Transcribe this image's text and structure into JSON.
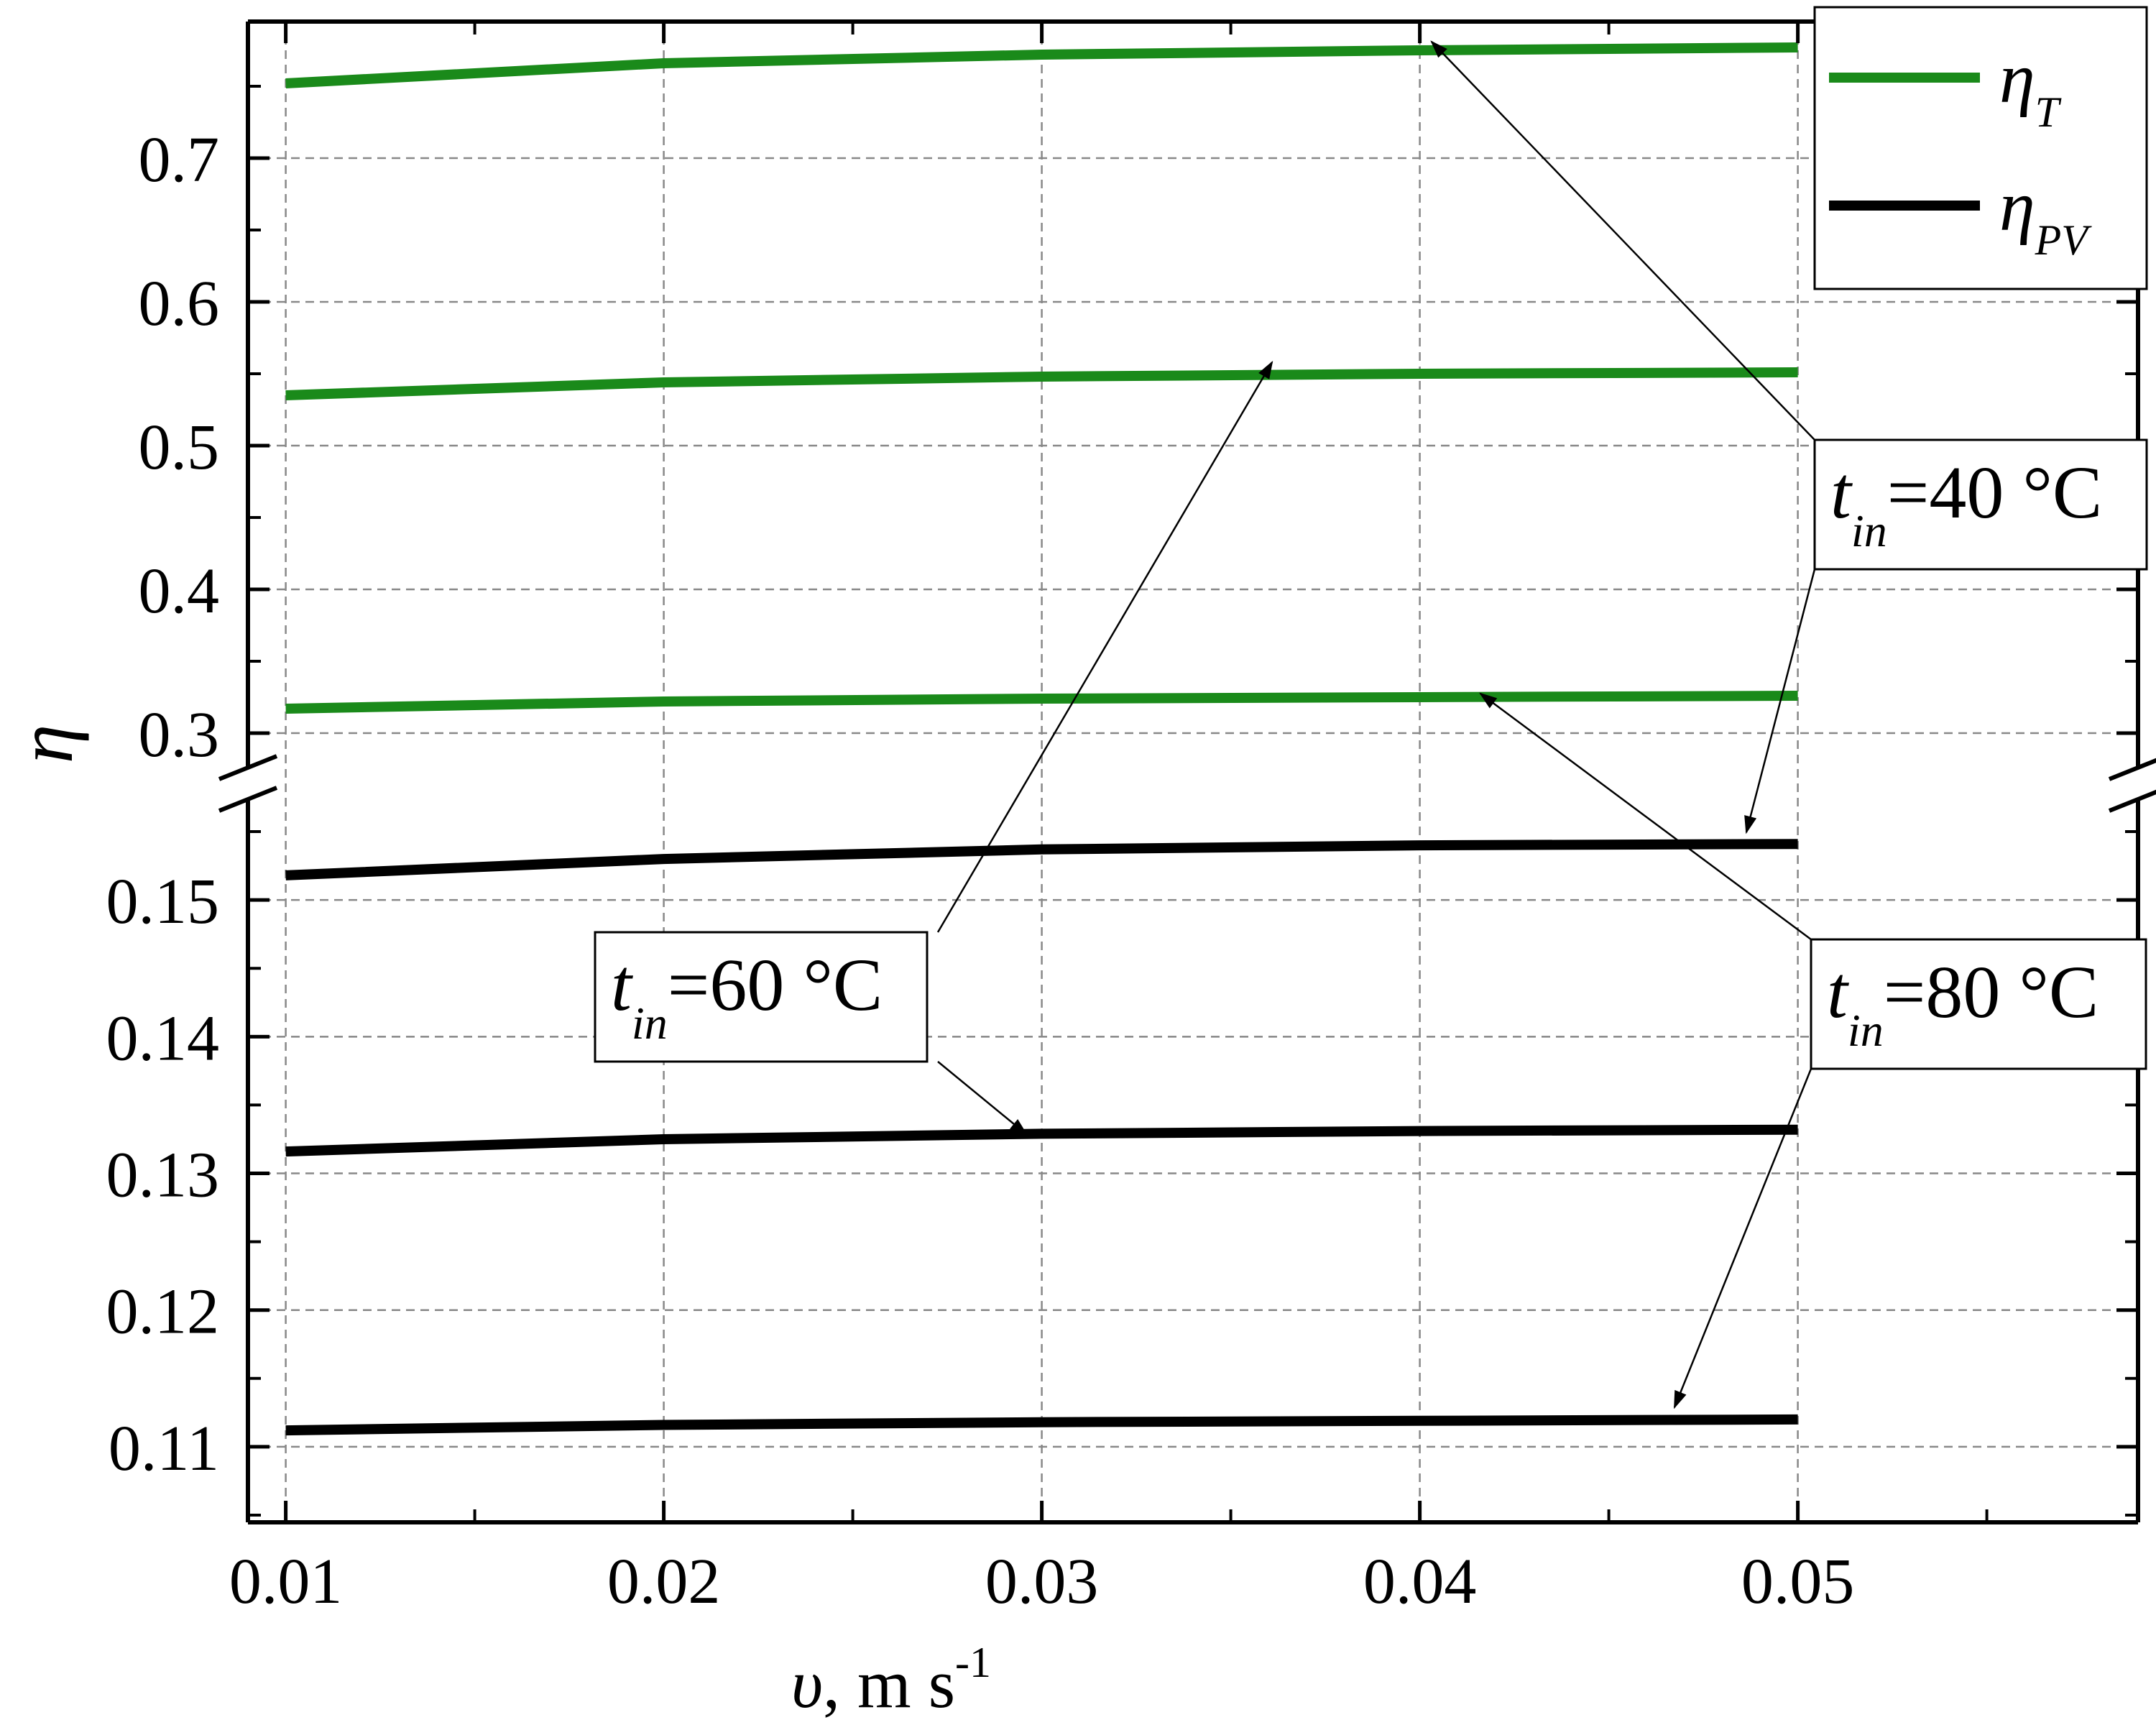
{
  "chart_data": {
    "type": "line",
    "xlabel": {
      "symbol": "υ",
      "unit": ", m s",
      "sup": "-1"
    },
    "ylabel": "η",
    "xlim": [
      0.009,
      0.059
    ],
    "x_ticks": [
      "0.01",
      "0.02",
      "0.03",
      "0.04",
      "0.05"
    ],
    "y_axis_broken": true,
    "y_upper": {
      "range": [
        0.27,
        0.79
      ],
      "ticks": [
        "0.3",
        "0.4",
        "0.5",
        "0.6",
        "0.7"
      ]
    },
    "y_lower": {
      "range": [
        0.105,
        0.158
      ],
      "ticks": [
        "0.11",
        "0.12",
        "0.13",
        "0.14",
        "0.15"
      ]
    },
    "grid": true,
    "legend_position": "top-right",
    "legend": [
      {
        "key": "eta_T",
        "base": "η",
        "sub": "T",
        "color": "#1a8a1a"
      },
      {
        "key": "eta_PV",
        "base": "η",
        "sub": "PV",
        "color": "#000000"
      }
    ],
    "series": [
      {
        "group": "eta_T",
        "panel": "upper",
        "color": "#1a8a1a",
        "x": [
          0.01,
          0.02,
          0.03,
          0.04,
          0.05
        ],
        "y": [
          0.752,
          0.766,
          0.772,
          0.775,
          0.777
        ]
      },
      {
        "group": "eta_T",
        "panel": "upper",
        "color": "#1a8a1a",
        "x": [
          0.01,
          0.02,
          0.03,
          0.04,
          0.05
        ],
        "y": [
          0.535,
          0.544,
          0.548,
          0.55,
          0.551
        ]
      },
      {
        "group": "eta_T",
        "panel": "upper",
        "color": "#1a8a1a",
        "x": [
          0.01,
          0.02,
          0.03,
          0.04,
          0.05
        ],
        "y": [
          0.317,
          0.322,
          0.324,
          0.325,
          0.326
        ]
      },
      {
        "group": "eta_PV",
        "panel": "lower",
        "color": "#000000",
        "x": [
          0.01,
          0.02,
          0.03,
          0.04,
          0.05
        ],
        "y": [
          0.1518,
          0.153,
          0.1537,
          0.154,
          0.1541
        ]
      },
      {
        "group": "eta_PV",
        "panel": "lower",
        "color": "#000000",
        "x": [
          0.01,
          0.02,
          0.03,
          0.04,
          0.05
        ],
        "y": [
          0.1316,
          0.1325,
          0.1329,
          0.1331,
          0.1332
        ]
      },
      {
        "group": "eta_PV",
        "panel": "lower",
        "color": "#000000",
        "x": [
          0.01,
          0.02,
          0.03,
          0.04,
          0.05
        ],
        "y": [
          0.1112,
          0.1116,
          0.1118,
          0.1119,
          0.112
        ]
      }
    ],
    "annotations": [
      {
        "italic": "t",
        "sub": "in",
        "text": "=40 °C"
      },
      {
        "italic": "t",
        "sub": "in",
        "text": "=60 °C"
      },
      {
        "italic": "t",
        "sub": "in",
        "text": "=80 °C"
      }
    ]
  }
}
